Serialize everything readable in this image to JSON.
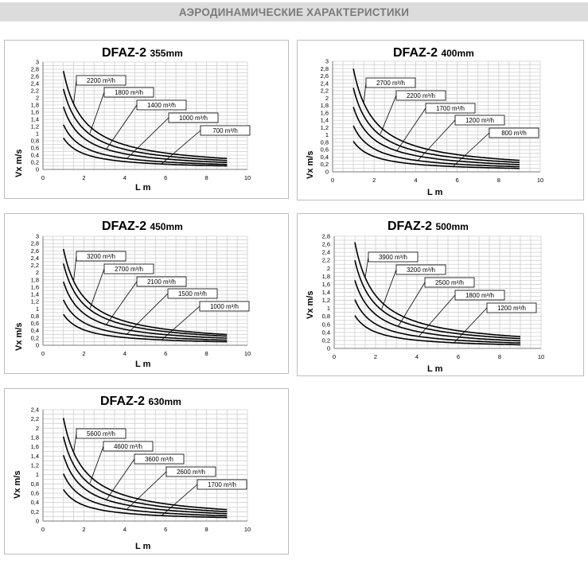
{
  "page": {
    "title": "АЭРОДИНАМИЧЕСКИЕ ХАРАКТЕРИСТИКИ"
  },
  "chart_data": [
    {
      "type": "line",
      "title_model": "DFAZ-2",
      "title_size": "355mm",
      "xlabel": "L m",
      "ylabel": "Vx m/s",
      "xlim": [
        0,
        10
      ],
      "ylim": [
        0,
        3
      ],
      "xticks": [
        "0",
        "2",
        "4",
        "6",
        "8",
        "10"
      ],
      "yticks": [
        "0",
        "0,2",
        "0,4",
        "0,6",
        "0,8",
        "1",
        "1,2",
        "1,4",
        "1,6",
        "1,8",
        "2",
        "2,2",
        "2,4",
        "2,6",
        "2,8",
        "3"
      ],
      "grid": true,
      "series": [
        {
          "name": "2200 m³/h",
          "x": [
            1,
            1.5,
            2,
            3,
            4,
            5,
            6,
            7,
            8,
            9
          ],
          "values": [
            2.75,
            1.83,
            1.38,
            0.92,
            0.69,
            0.55,
            0.46,
            0.39,
            0.34,
            0.31
          ]
        },
        {
          "name": "1800 m³/h",
          "x": [
            1,
            1.5,
            2,
            3,
            4,
            5,
            6,
            7,
            8,
            9
          ],
          "values": [
            2.25,
            1.5,
            1.13,
            0.75,
            0.56,
            0.45,
            0.38,
            0.32,
            0.28,
            0.25
          ]
        },
        {
          "name": "1400 m³/h",
          "x": [
            1,
            1.5,
            2,
            3,
            4,
            5,
            6,
            7,
            8,
            9
          ],
          "values": [
            1.75,
            1.17,
            0.88,
            0.58,
            0.44,
            0.35,
            0.29,
            0.25,
            0.22,
            0.19
          ]
        },
        {
          "name": "1000 m³/h",
          "x": [
            1,
            1.5,
            2,
            3,
            4,
            5,
            6,
            7,
            8,
            9
          ],
          "values": [
            1.25,
            0.83,
            0.63,
            0.42,
            0.31,
            0.25,
            0.21,
            0.18,
            0.16,
            0.14
          ]
        },
        {
          "name": "700 m³/h",
          "x": [
            1,
            1.5,
            2,
            3,
            4,
            5,
            6,
            7,
            8,
            9
          ],
          "values": [
            0.88,
            0.58,
            0.44,
            0.29,
            0.22,
            0.18,
            0.15,
            0.13,
            0.11,
            0.1
          ]
        }
      ]
    },
    {
      "type": "line",
      "title_model": "DFAZ-2",
      "title_size": "400mm",
      "xlabel": "L m",
      "ylabel": "Vx m/s",
      "xlim": [
        0,
        10
      ],
      "ylim": [
        0,
        3
      ],
      "xticks": [
        "0",
        "2",
        "4",
        "6",
        "8",
        "10"
      ],
      "yticks": [
        "0",
        "0,2",
        "0,4",
        "0,6",
        "0,8",
        "1",
        "1,2",
        "1,4",
        "1,6",
        "1,8",
        "2",
        "2,2",
        "2,4",
        "2,6",
        "2,8",
        "3"
      ],
      "grid": true,
      "series": [
        {
          "name": "2700 m³/h",
          "x": [
            1,
            1.5,
            2,
            3,
            4,
            5,
            6,
            7,
            8,
            9
          ],
          "values": [
            2.8,
            1.87,
            1.4,
            0.93,
            0.7,
            0.56,
            0.47,
            0.4,
            0.35,
            0.31
          ]
        },
        {
          "name": "2200 m³/h",
          "x": [
            1,
            1.5,
            2,
            3,
            4,
            5,
            6,
            7,
            8,
            9
          ],
          "values": [
            2.28,
            1.52,
            1.14,
            0.76,
            0.57,
            0.46,
            0.38,
            0.33,
            0.29,
            0.25
          ]
        },
        {
          "name": "1700 m³/h",
          "x": [
            1,
            1.5,
            2,
            3,
            4,
            5,
            6,
            7,
            8,
            9
          ],
          "values": [
            1.76,
            1.17,
            0.88,
            0.59,
            0.44,
            0.35,
            0.29,
            0.25,
            0.22,
            0.2
          ]
        },
        {
          "name": "1200 m³/h",
          "x": [
            1,
            1.5,
            2,
            3,
            4,
            5,
            6,
            7,
            8,
            9
          ],
          "values": [
            1.25,
            0.83,
            0.62,
            0.42,
            0.31,
            0.25,
            0.21,
            0.18,
            0.16,
            0.14
          ]
        },
        {
          "name": "800 m³/h",
          "x": [
            1,
            1.5,
            2,
            3,
            4,
            5,
            6,
            7,
            8,
            9
          ],
          "values": [
            0.83,
            0.55,
            0.41,
            0.28,
            0.21,
            0.17,
            0.14,
            0.12,
            0.1,
            0.09
          ]
        }
      ]
    },
    {
      "type": "line",
      "title_model": "DFAZ-2",
      "title_size": "450mm",
      "xlabel": "L m",
      "ylabel": "Vx m/s",
      "xlim": [
        0,
        10
      ],
      "ylim": [
        0,
        3
      ],
      "xticks": [
        "0",
        "2",
        "4",
        "6",
        "8",
        "10"
      ],
      "yticks": [
        "0",
        "0,2",
        "0,4",
        "0,6",
        "0,8",
        "1",
        "1,2",
        "1,4",
        "1,6",
        "1,8",
        "2",
        "2,2",
        "2,4",
        "2,6",
        "2,8",
        "3"
      ],
      "grid": true,
      "series": [
        {
          "name": "3200 m³/h",
          "x": [
            1,
            1.5,
            2,
            3,
            4,
            5,
            6,
            7,
            8,
            9
          ],
          "values": [
            2.65,
            1.77,
            1.33,
            0.88,
            0.66,
            0.53,
            0.44,
            0.38,
            0.33,
            0.29
          ]
        },
        {
          "name": "2700 m³/h",
          "x": [
            1,
            1.5,
            2,
            3,
            4,
            5,
            6,
            7,
            8,
            9
          ],
          "values": [
            2.25,
            1.5,
            1.13,
            0.75,
            0.56,
            0.45,
            0.38,
            0.32,
            0.28,
            0.25
          ]
        },
        {
          "name": "2100 m³/h",
          "x": [
            1,
            1.5,
            2,
            3,
            4,
            5,
            6,
            7,
            8,
            9
          ],
          "values": [
            1.75,
            1.17,
            0.88,
            0.58,
            0.44,
            0.35,
            0.29,
            0.25,
            0.22,
            0.19
          ]
        },
        {
          "name": "1500 m³/h",
          "x": [
            1,
            1.5,
            2,
            3,
            4,
            5,
            6,
            7,
            8,
            9
          ],
          "values": [
            1.25,
            0.83,
            0.63,
            0.42,
            0.31,
            0.25,
            0.21,
            0.18,
            0.16,
            0.14
          ]
        },
        {
          "name": "1000 m³/h",
          "x": [
            1,
            1.5,
            2,
            3,
            4,
            5,
            6,
            7,
            8,
            9
          ],
          "values": [
            0.85,
            0.57,
            0.43,
            0.28,
            0.21,
            0.17,
            0.14,
            0.12,
            0.11,
            0.09
          ]
        }
      ]
    },
    {
      "type": "line",
      "title_model": "DFAZ-2",
      "title_size": "500mm",
      "xlabel": "L m",
      "ylabel": "Vx m/s",
      "xlim": [
        0,
        10
      ],
      "ylim": [
        0,
        2.8
      ],
      "xticks": [
        "0",
        "2",
        "4",
        "6",
        "8",
        "10"
      ],
      "yticks": [
        "0",
        "0,2",
        "0,4",
        "0,6",
        "0,8",
        "1",
        "1,2",
        "1,4",
        "1,6",
        "1,8",
        "2",
        "2,2",
        "2,4",
        "2,6",
        "2,8"
      ],
      "grid": true,
      "series": [
        {
          "name": "3900 m³/h",
          "x": [
            1,
            1.5,
            2,
            3,
            4,
            5,
            6,
            7,
            8,
            9
          ],
          "values": [
            2.65,
            1.77,
            1.33,
            0.88,
            0.66,
            0.53,
            0.44,
            0.38,
            0.33,
            0.29
          ]
        },
        {
          "name": "3200 m³/h",
          "x": [
            1,
            1.5,
            2,
            3,
            4,
            5,
            6,
            7,
            8,
            9
          ],
          "values": [
            2.2,
            1.47,
            1.1,
            0.73,
            0.55,
            0.44,
            0.37,
            0.31,
            0.28,
            0.24
          ]
        },
        {
          "name": "2500 m³/h",
          "x": [
            1,
            1.5,
            2,
            3,
            4,
            5,
            6,
            7,
            8,
            9
          ],
          "values": [
            1.7,
            1.13,
            0.85,
            0.57,
            0.43,
            0.34,
            0.28,
            0.24,
            0.21,
            0.19
          ]
        },
        {
          "name": "1800 m³/h",
          "x": [
            1,
            1.5,
            2,
            3,
            4,
            5,
            6,
            7,
            8,
            9
          ],
          "values": [
            1.22,
            0.81,
            0.61,
            0.41,
            0.31,
            0.24,
            0.2,
            0.17,
            0.15,
            0.14
          ]
        },
        {
          "name": "1200 m³/h",
          "x": [
            1,
            1.5,
            2,
            3,
            4,
            5,
            6,
            7,
            8,
            9
          ],
          "values": [
            0.82,
            0.55,
            0.41,
            0.27,
            0.21,
            0.16,
            0.14,
            0.12,
            0.1,
            0.09
          ]
        }
      ]
    },
    {
      "type": "line",
      "title_model": "DFAZ-2",
      "title_size": "630mm",
      "xlabel": "L m",
      "ylabel": "Vx m/s",
      "xlim": [
        0,
        10
      ],
      "ylim": [
        0,
        2.4
      ],
      "xticks": [
        "0",
        "2",
        "4",
        "6",
        "8",
        "10"
      ],
      "yticks": [
        "0",
        "0,2",
        "0,4",
        "0,6",
        "0,8",
        "1",
        "1,2",
        "1,4",
        "1,6",
        "1,8",
        "2",
        "2,2",
        "2,4"
      ],
      "grid": true,
      "series": [
        {
          "name": "5600 m³/h",
          "x": [
            1,
            1.5,
            2,
            3,
            4,
            5,
            6,
            7,
            8,
            9
          ],
          "values": [
            2.22,
            1.48,
            1.11,
            0.74,
            0.56,
            0.44,
            0.37,
            0.32,
            0.28,
            0.25
          ]
        },
        {
          "name": "4600 m³/h",
          "x": [
            1,
            1.5,
            2,
            3,
            4,
            5,
            6,
            7,
            8,
            9
          ],
          "values": [
            1.82,
            1.21,
            0.91,
            0.61,
            0.46,
            0.36,
            0.3,
            0.26,
            0.23,
            0.2
          ]
        },
        {
          "name": "3600 m³/h",
          "x": [
            1,
            1.5,
            2,
            3,
            4,
            5,
            6,
            7,
            8,
            9
          ],
          "values": [
            1.42,
            0.95,
            0.71,
            0.47,
            0.36,
            0.28,
            0.24,
            0.2,
            0.18,
            0.16
          ]
        },
        {
          "name": "2600 m³/h",
          "x": [
            1,
            1.5,
            2,
            3,
            4,
            5,
            6,
            7,
            8,
            9
          ],
          "values": [
            1.02,
            0.68,
            0.51,
            0.34,
            0.26,
            0.2,
            0.17,
            0.15,
            0.13,
            0.11
          ]
        },
        {
          "name": "1700 m³/h",
          "x": [
            1,
            1.5,
            2,
            3,
            4,
            5,
            6,
            7,
            8,
            9
          ],
          "values": [
            0.68,
            0.45,
            0.34,
            0.23,
            0.17,
            0.14,
            0.11,
            0.1,
            0.09,
            0.08
          ]
        }
      ]
    }
  ]
}
